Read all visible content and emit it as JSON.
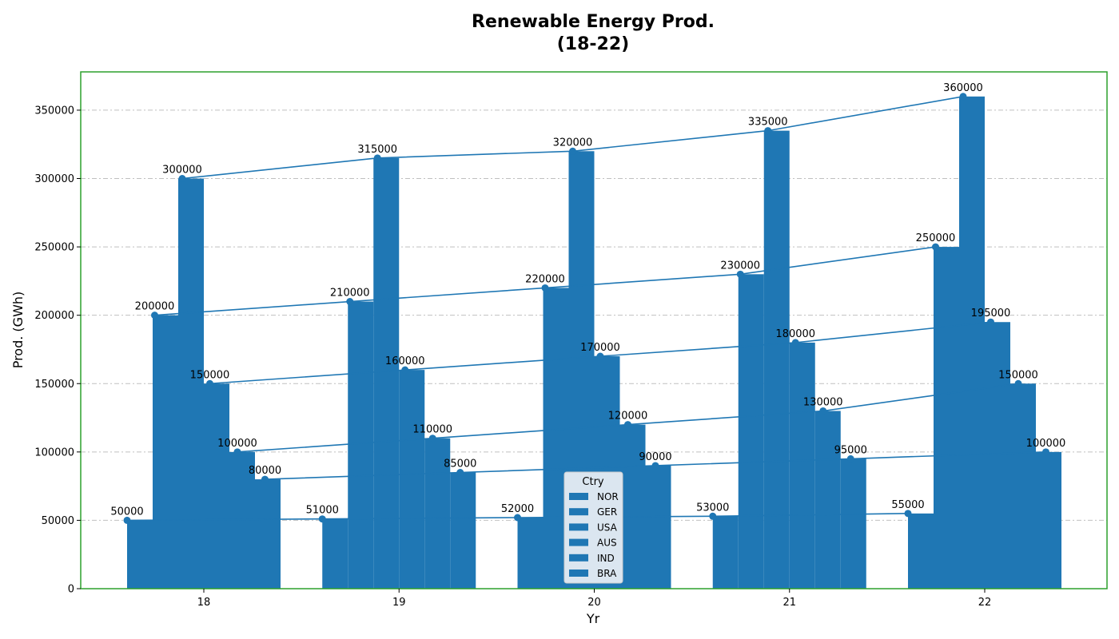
{
  "chart_data": {
    "type": "bar",
    "title": "Renewable Energy Prod.\n(18-22)",
    "title_lines": [
      "Renewable Energy Prod.",
      "(18-22)"
    ],
    "xlabel": "Yr",
    "ylabel": "Prod. (GWh)",
    "categories": [
      "18",
      "19",
      "20",
      "21",
      "22"
    ],
    "ylim": [
      0,
      378000
    ],
    "yticks": [
      0,
      50000,
      100000,
      150000,
      200000,
      250000,
      300000,
      350000
    ],
    "grid": true,
    "legend_title": "Ctry",
    "legend_position": "bottom-center",
    "series": [
      {
        "name": "NOR",
        "values": [
          50000,
          51000,
          52000,
          53000,
          55000
        ]
      },
      {
        "name": "GER",
        "values": [
          200000,
          210000,
          220000,
          230000,
          250000
        ]
      },
      {
        "name": "USA",
        "values": [
          300000,
          315000,
          320000,
          335000,
          360000
        ]
      },
      {
        "name": "AUS",
        "values": [
          150000,
          160000,
          170000,
          180000,
          195000
        ]
      },
      {
        "name": "IND",
        "values": [
          100000,
          110000,
          120000,
          130000,
          150000
        ]
      },
      {
        "name": "BRA",
        "values": [
          80000,
          85000,
          90000,
          95000,
          100000
        ]
      }
    ],
    "colors": {
      "bar": "#1f77b4",
      "line": "#1f77b4",
      "frame": "#2ca02c",
      "grid": "#c0c0c0",
      "legend_bg": "#dbe6f0"
    }
  }
}
